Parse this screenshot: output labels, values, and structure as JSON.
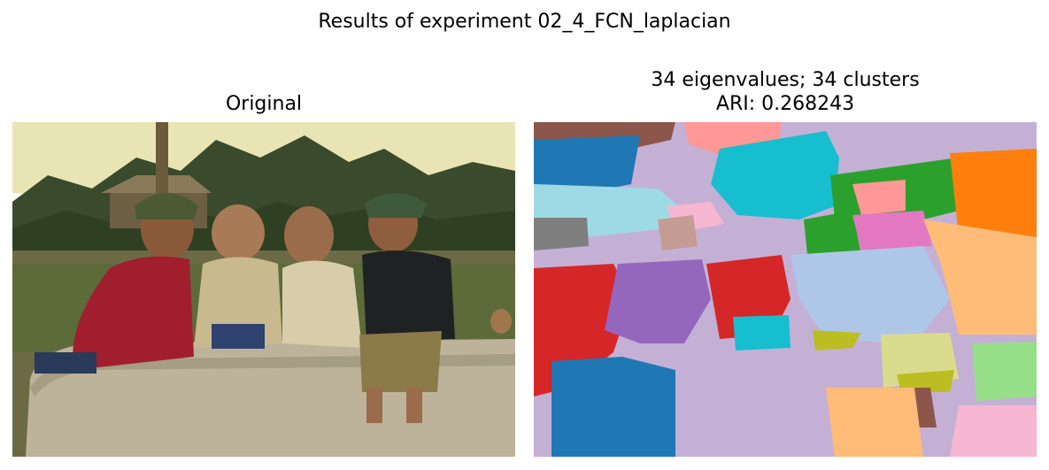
{
  "figure": {
    "suptitle": "Results of experiment 02_4_FCN_laplacian"
  },
  "panels": [
    {
      "title": "Original",
      "image": "photo of four young children sitting on a large concrete pipe in a field with trees and huts behind"
    },
    {
      "title_line1": "34 eigenvalues; 34 clusters",
      "title_line2": "ARI: 0.268243",
      "image": "spectral clustering segmentation map with 34 colored regions"
    }
  ],
  "colors": {
    "background_cluster": "#c5b0d5",
    "blue": "#1f77b4",
    "light_blue": "#9edae5",
    "cyan": "#17becf",
    "green": "#2ca02c",
    "orange": "#ff7f0e",
    "red": "#d62728",
    "purple": "#9467bd",
    "pink": "#ff9896",
    "magenta": "#e377c2",
    "peach": "#ffbb78",
    "lavender_blue": "#aec7e8",
    "light_pink": "#f7b6d2",
    "brown": "#8c564b",
    "gray": "#7f7f7f",
    "olive": "#bcbd22",
    "pale_yellow": "#dbdb8d",
    "light_green": "#98df8a",
    "tan": "#c49c94"
  }
}
